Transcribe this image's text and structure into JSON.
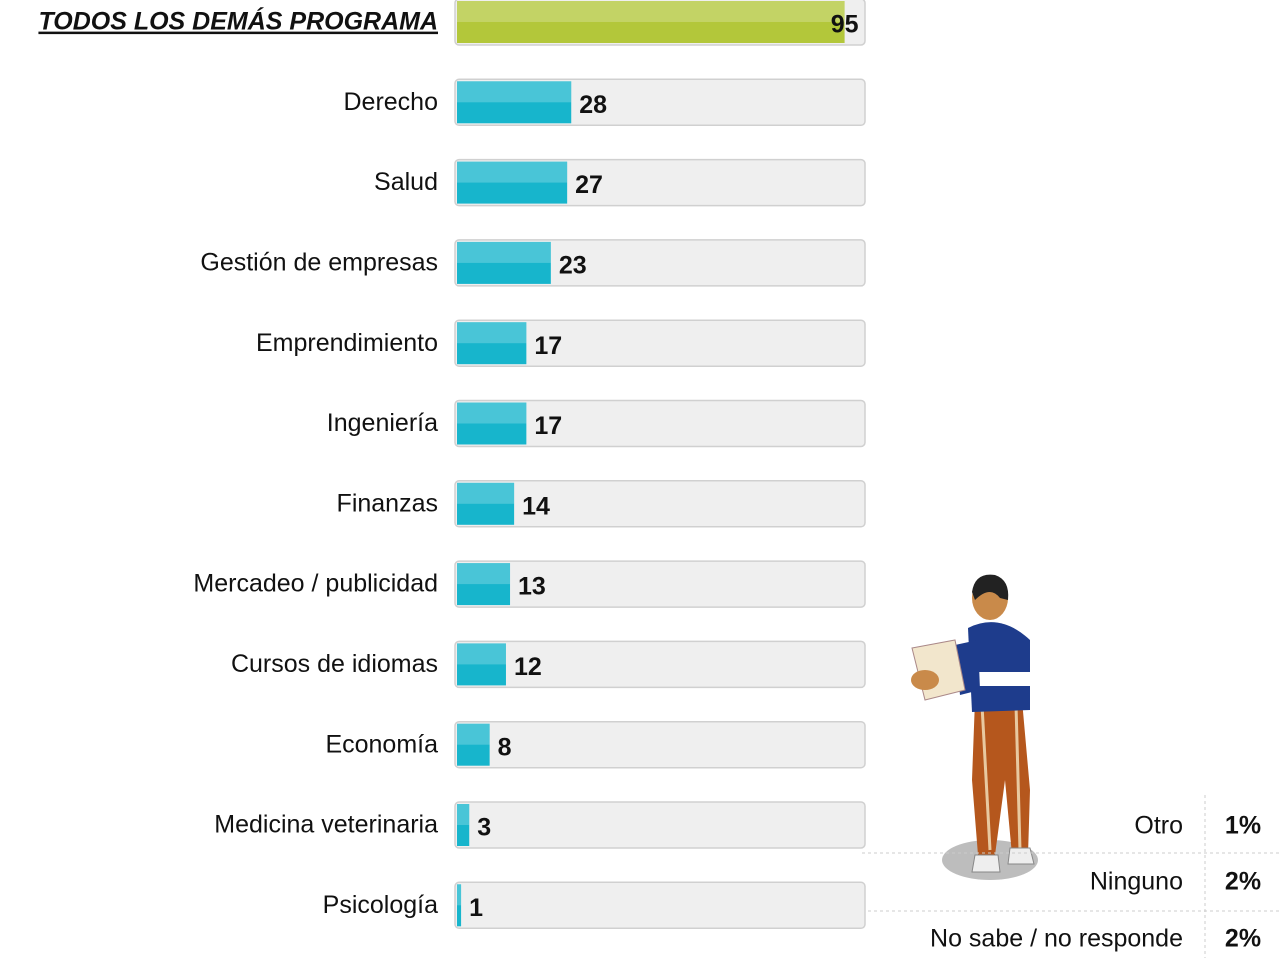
{
  "chart_data": {
    "type": "bar",
    "orientation": "horizontal",
    "categories": [
      "TODOS LOS DEMÁS PROGRAMA",
      "Derecho",
      "Salud",
      "Gestión de empresas",
      "Emprendimiento",
      "Ingeniería",
      "Finanzas",
      "Mercadeo / publicidad",
      "Cursos de idiomas",
      "Economía",
      "Medicina veterinaria",
      "Psicología"
    ],
    "values": [
      95,
      28,
      27,
      23,
      17,
      17,
      14,
      13,
      12,
      8,
      3,
      1
    ],
    "colors": [
      "#b3c73a",
      "#17b5cc",
      "#17b5cc",
      "#17b5cc",
      "#17b5cc",
      "#17b5cc",
      "#17b5cc",
      "#17b5cc",
      "#17b5cc",
      "#17b5cc",
      "#17b5cc",
      "#17b5cc"
    ],
    "xlim": [
      0,
      100
    ]
  },
  "side_table": {
    "rows": [
      [
        "Otro",
        "1%"
      ],
      [
        "Ninguno",
        "2%"
      ],
      [
        "No sabe / no responde",
        "2%"
      ]
    ]
  }
}
